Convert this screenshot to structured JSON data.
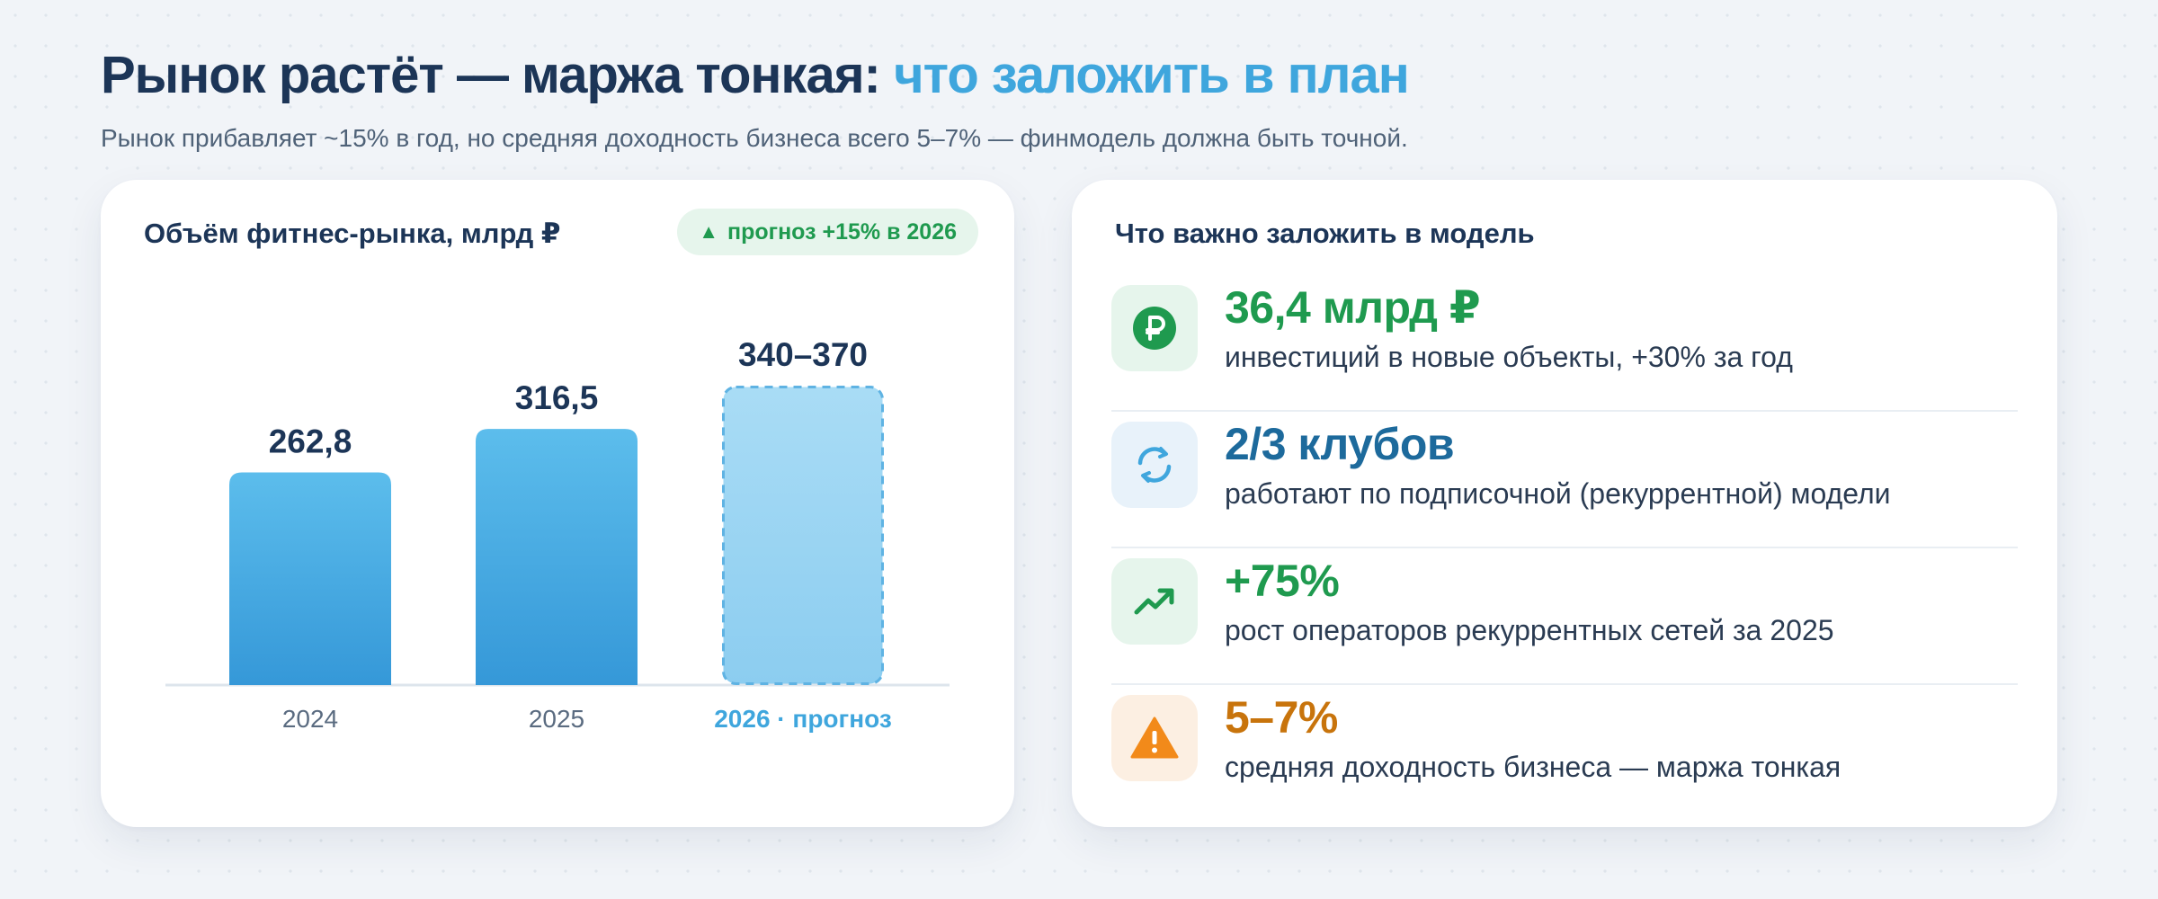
{
  "header": {
    "title_main": "Рынок растёт — маржа тонкая:",
    "title_accent": "что заложить в план",
    "subtitle": "Рынок прибавляет ~15% в год, но средняя доходность бизнеса всего 5–7% — финмодель должна быть точной."
  },
  "chart_card": {
    "title": "Объём фитнес-рынка, млрд ₽",
    "badge_icon": "▲",
    "badge_text": "прогноз +15% в 2026"
  },
  "chart_data": {
    "type": "bar",
    "categories": [
      "2024",
      "2025",
      "2026 · прогноз"
    ],
    "values": [
      262.8,
      316.5,
      370
    ],
    "range_low": [
      null,
      null,
      340
    ],
    "data_labels": [
      "262,8",
      "316,5",
      "340–370"
    ],
    "forecast": [
      false,
      false,
      true
    ],
    "title": "Объём фитнес-рынка, млрд ₽",
    "ylim": [
      0,
      420
    ],
    "grid": false,
    "legend": "none",
    "colors": {
      "actual_top": "#5cbdec",
      "actual_bottom": "#3598d8",
      "forecast_fill": "#9fd6f3",
      "forecast_border": "#5fb3e3",
      "axis": "#dde5ec",
      "label": "#1c3557",
      "tick": "#5a6b80",
      "forecast_tick": "#3fa6dd"
    }
  },
  "model_card": {
    "title": "Что важно заложить в модель",
    "items": [
      {
        "icon": "ruble-coin-icon",
        "value": "36,4 млрд ₽",
        "desc": "инвестиций в новые объекты, +30% за год",
        "value_color": "#1f9a4f",
        "bg_color": "#e6f5ec"
      },
      {
        "icon": "refresh-cycle-icon",
        "value": "2/3 клубов",
        "desc": "работают по подписочной (рекуррентной) модели",
        "value_color": "#1d6a9c",
        "bg_color": "#e8f2fa"
      },
      {
        "icon": "trending-up-icon",
        "value": "+75%",
        "desc": "рост операторов рекуррентных сетей за 2025",
        "value_color": "#1f9a4f",
        "bg_color": "#e6f5ec"
      },
      {
        "icon": "warning-icon",
        "value": "5–7%",
        "desc": "средняя доходность бизнеса — маржа тонкая",
        "value_color": "#c8740c",
        "bg_color": "#fcefe2"
      }
    ]
  }
}
